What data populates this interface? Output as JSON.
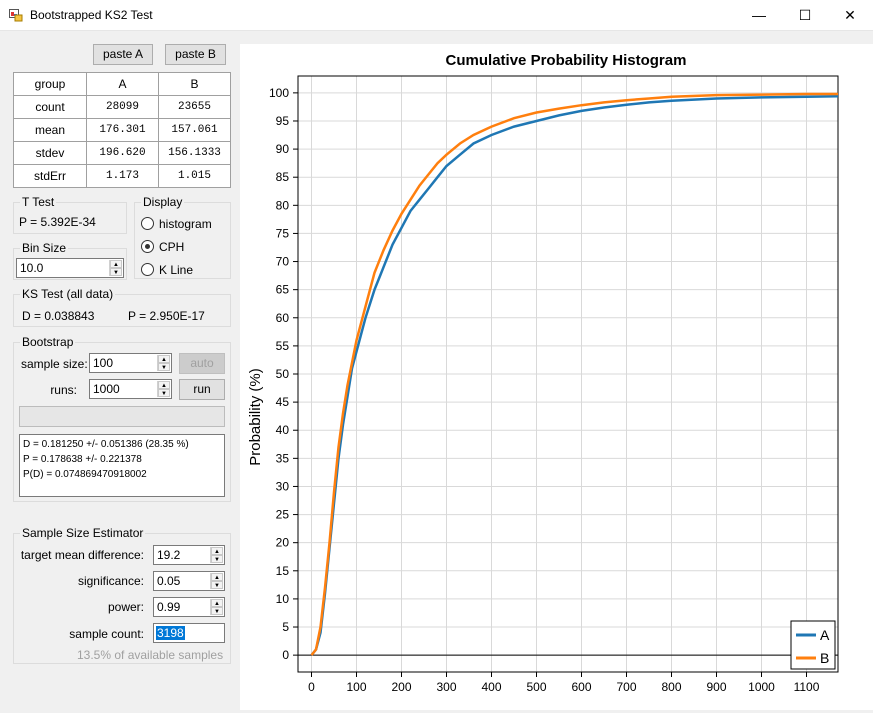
{
  "window": {
    "title": "Bootstrapped KS2 Test",
    "minimize": "—",
    "maximize": "☐",
    "close": "✕"
  },
  "toolbar": {
    "paste_a": "paste A",
    "paste_b": "paste B"
  },
  "stats_table": {
    "headers": [
      "group",
      "A",
      "B"
    ],
    "rows": [
      {
        "label": "count",
        "a": "28099",
        "b": "23655"
      },
      {
        "label": "mean",
        "a": "176.301",
        "b": "157.061"
      },
      {
        "label": "stdev",
        "a": "196.620",
        "b": "156.1333"
      },
      {
        "label": "stdErr",
        "a": "1.173",
        "b": "1.015"
      }
    ]
  },
  "t_test": {
    "title": "T Test",
    "p_value": "P = 5.392E-34"
  },
  "bin_size": {
    "title": "Bin Size",
    "value": "10.0"
  },
  "display": {
    "title": "Display",
    "options": [
      "histogram",
      "CPH",
      "K Line"
    ],
    "selected": "CPH"
  },
  "ks_test": {
    "title": "KS Test (all data)",
    "d": "D = 0.038843",
    "p": "P = 2.950E-17"
  },
  "bootstrap": {
    "title": "Bootstrap",
    "sample_size_label": "sample size:",
    "sample_size": "100",
    "runs_label": "runs:",
    "runs": "1000",
    "auto_label": "auto",
    "run_label": "run",
    "output": [
      "D = 0.181250 +/- 0.051386 (28.35 %)",
      "P = 0.178638 +/- 0.221378",
      "P(D) = 0.074869470918002"
    ]
  },
  "estimator": {
    "title": "Sample Size Estimator",
    "target_label": "target mean difference:",
    "target": "19.2",
    "significance_label": "significance:",
    "significance": "0.05",
    "power_label": "power:",
    "power": "0.99",
    "count_label": "sample count:",
    "count": "3198",
    "available": "13.5% of available samples"
  },
  "chart_data": {
    "type": "line",
    "title": "Cumulative Probability Histogram",
    "xlabel": "",
    "ylabel": "Probability (%)",
    "xlim": [
      -30,
      1170
    ],
    "ylim": [
      -3,
      103
    ],
    "xticks": [
      0,
      100,
      200,
      300,
      400,
      500,
      600,
      700,
      800,
      900,
      1000,
      1100
    ],
    "yticks": [
      0,
      5,
      10,
      15,
      20,
      25,
      30,
      35,
      40,
      45,
      50,
      55,
      60,
      65,
      70,
      75,
      80,
      85,
      90,
      95,
      100
    ],
    "grid": true,
    "legend_position": "bottom-right",
    "series": [
      {
        "name": "A",
        "color": "#1f77b4",
        "x": [
          0,
          10,
          20,
          30,
          40,
          50,
          60,
          70,
          80,
          90,
          100,
          120,
          140,
          160,
          180,
          200,
          220,
          240,
          260,
          280,
          300,
          330,
          360,
          400,
          450,
          500,
          550,
          600,
          650,
          700,
          750,
          800,
          900,
          1000,
          1100,
          1170
        ],
        "y": [
          0,
          1,
          4,
          11,
          19,
          27,
          35,
          41,
          46,
          51,
          54,
          60,
          65,
          69,
          73,
          76,
          79,
          81,
          83,
          85,
          87,
          89,
          91,
          92.5,
          94,
          95,
          96,
          96.8,
          97.4,
          97.9,
          98.3,
          98.6,
          99,
          99.2,
          99.3,
          99.4
        ]
      },
      {
        "name": "B",
        "color": "#ff7f0e",
        "x": [
          0,
          10,
          20,
          30,
          40,
          50,
          60,
          70,
          80,
          90,
          100,
          120,
          140,
          160,
          180,
          200,
          220,
          240,
          260,
          280,
          300,
          330,
          360,
          400,
          450,
          500,
          550,
          600,
          650,
          700,
          750,
          800,
          900,
          1000,
          1100,
          1170
        ],
        "y": [
          0,
          1,
          5,
          12,
          20,
          29,
          37,
          43,
          48,
          52,
          56,
          62,
          68,
          72,
          75.5,
          78.5,
          81,
          83.5,
          85.5,
          87.5,
          89,
          91,
          92.5,
          94,
          95.5,
          96.5,
          97.2,
          97.8,
          98.3,
          98.7,
          99,
          99.3,
          99.6,
          99.7,
          99.8,
          99.8
        ]
      }
    ]
  }
}
